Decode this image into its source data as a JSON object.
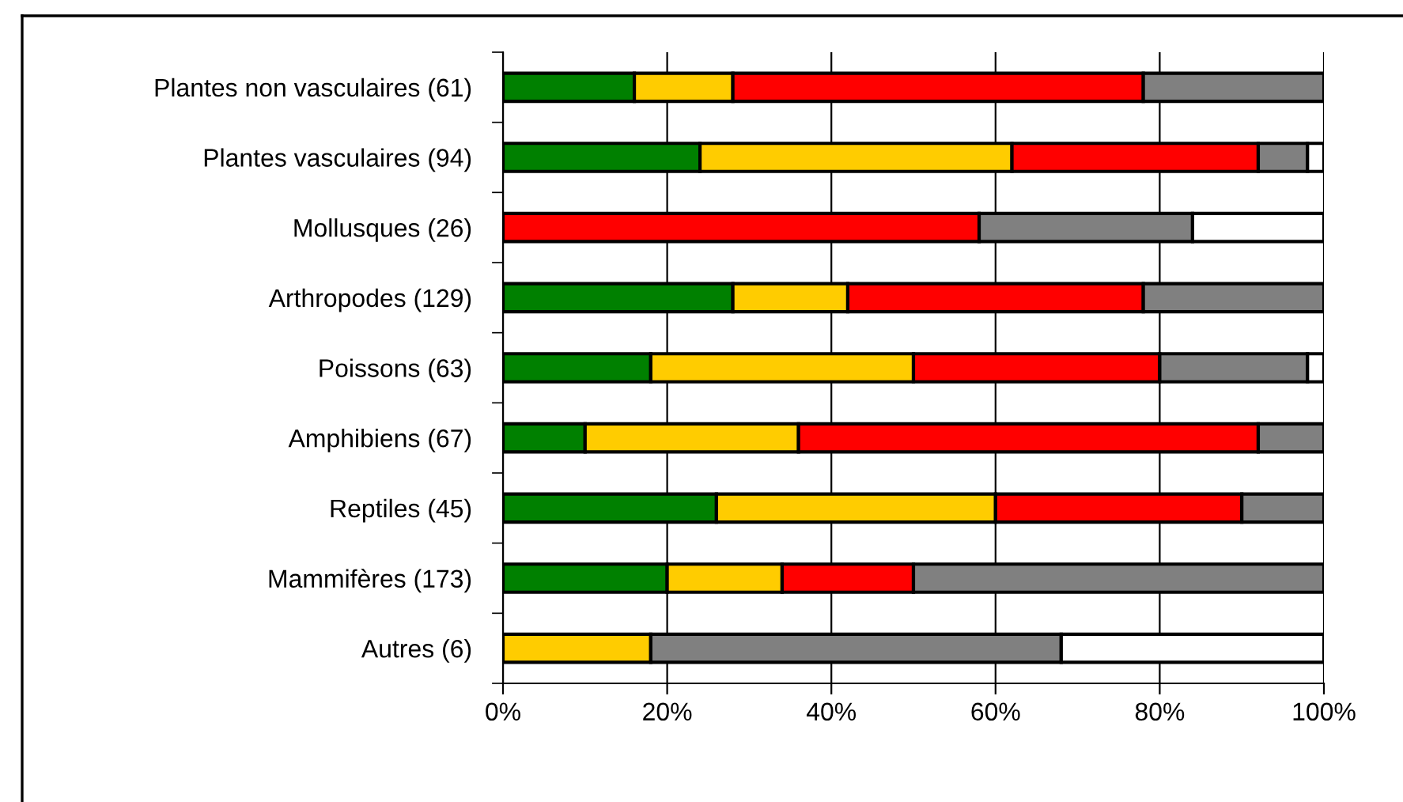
{
  "chart_data": {
    "type": "bar",
    "orientation": "horizontal",
    "stacked": true,
    "categories": [
      "Plantes non vasculaires (61)",
      "Plantes vasculaires (94)",
      "Mollusques (26)",
      "Arthropodes (129)",
      "Poissons (63)",
      "Amphibiens (67)",
      "Reptiles (45)",
      "Mammifères (173)",
      "Autres (6)"
    ],
    "series": [
      {
        "color": "#008000",
        "values": [
          16,
          24,
          0,
          28,
          18,
          10,
          26,
          20,
          0
        ]
      },
      {
        "color": "#ffcc00",
        "values": [
          12,
          38,
          0,
          14,
          32,
          26,
          34,
          14,
          18
        ]
      },
      {
        "color": "#ff0000",
        "values": [
          50,
          30,
          58,
          36,
          30,
          56,
          30,
          16,
          0
        ]
      },
      {
        "color": "#808080",
        "values": [
          22,
          6,
          26,
          22,
          18,
          8,
          10,
          50,
          50
        ]
      },
      {
        "color": "#ffffff",
        "values": [
          0,
          2,
          16,
          0,
          2,
          0,
          0,
          0,
          32
        ]
      }
    ],
    "xlim": [
      0,
      100
    ],
    "xticks": [
      {
        "value": 0,
        "label": "0%"
      },
      {
        "value": 20,
        "label": "20%"
      },
      {
        "value": 40,
        "label": "40%"
      },
      {
        "value": 60,
        "label": "60%"
      },
      {
        "value": 80,
        "label": "80%"
      },
      {
        "value": 100,
        "label": "100%"
      }
    ],
    "grid": "x"
  }
}
